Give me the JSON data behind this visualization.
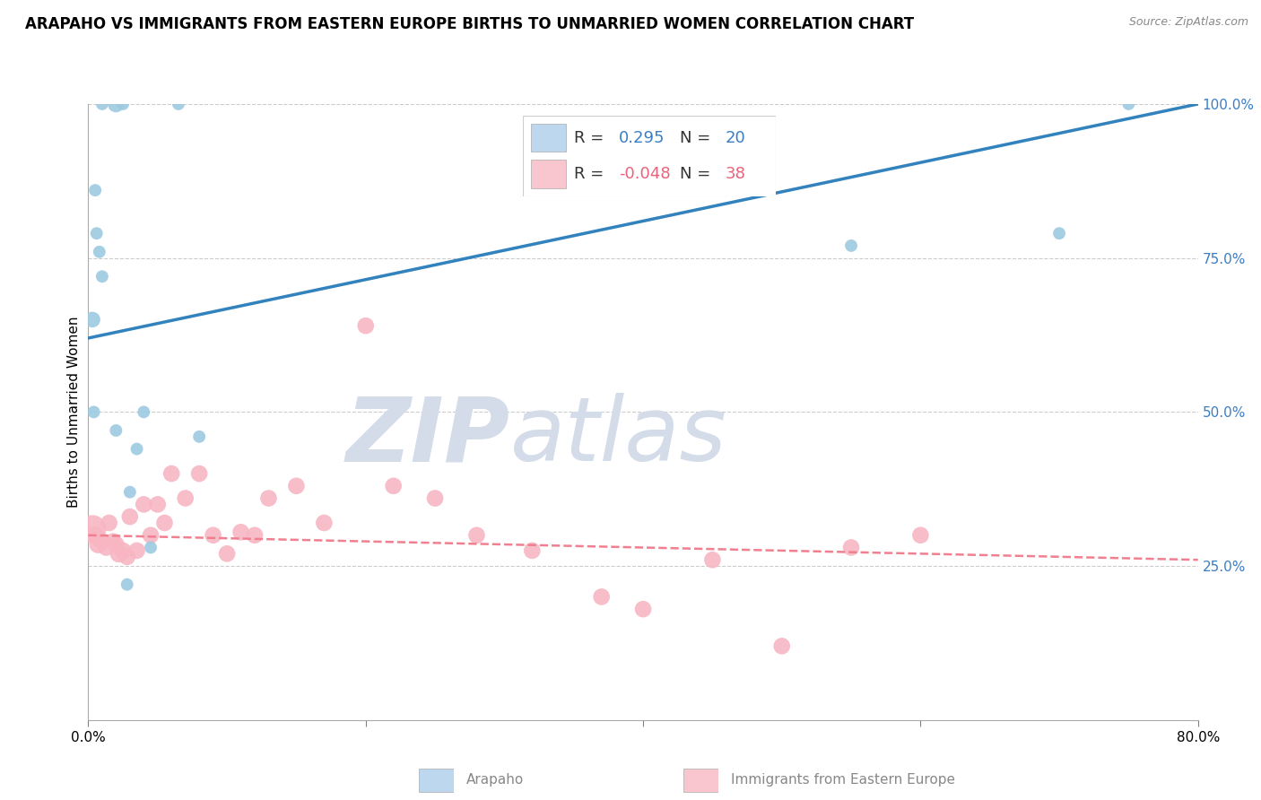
{
  "title": "ARAPAHO VS IMMIGRANTS FROM EASTERN EUROPE BIRTHS TO UNMARRIED WOMEN CORRELATION CHART",
  "source": "Source: ZipAtlas.com",
  "ylabel": "Births to Unmarried Women",
  "xlim": [
    0,
    80
  ],
  "ylim": [
    0,
    100
  ],
  "xlabel_values": [
    0.0,
    20.0,
    40.0,
    60.0,
    80.0
  ],
  "xlabel_labels": [
    "0.0%",
    "",
    "",
    "",
    "80.0%"
  ],
  "ylabel_ticks": [
    25.0,
    50.0,
    75.0,
    100.0
  ],
  "ylabel_labels": [
    "25.0%",
    "50.0%",
    "75.0%",
    "100.0%"
  ],
  "arapaho_R": 0.295,
  "arapaho_N": 20,
  "eastern_europe_R": -0.048,
  "eastern_europe_N": 38,
  "arapaho_color": "#9ECAE1",
  "eastern_europe_color": "#F7B6C2",
  "trend_blue_color": "#3182BD",
  "trend_pink_color": "#E8647A",
  "legend_box_color_blue": "#BDD7EE",
  "legend_box_color_pink": "#F9C6D0",
  "watermark_zip": "ZIP",
  "watermark_atlas": "atlas",
  "watermark_color": "#D3DCE8",
  "arapaho_x": [
    1.0,
    2.0,
    2.5,
    6.5,
    0.5,
    0.8,
    1.0,
    0.3,
    0.6,
    2.0,
    3.5,
    55.0,
    70.0,
    75.0,
    0.4,
    4.0,
    8.0,
    3.0,
    2.8,
    4.5
  ],
  "arapaho_y": [
    100.0,
    100.0,
    100.0,
    100.0,
    86.0,
    76.0,
    72.0,
    65.0,
    79.0,
    47.0,
    44.0,
    77.0,
    79.0,
    100.0,
    50.0,
    50.0,
    46.0,
    37.0,
    22.0,
    28.0
  ],
  "arapaho_sizes": [
    100,
    180,
    100,
    100,
    100,
    100,
    100,
    160,
    100,
    100,
    100,
    100,
    100,
    100,
    100,
    100,
    100,
    100,
    100,
    100
  ],
  "eastern_europe_x": [
    0.3,
    0.5,
    0.7,
    1.0,
    1.3,
    1.5,
    1.8,
    2.0,
    2.2,
    2.5,
    2.8,
    3.0,
    3.5,
    4.0,
    4.5,
    5.0,
    5.5,
    6.0,
    7.0,
    8.0,
    9.0,
    10.0,
    11.0,
    12.0,
    13.0,
    15.0,
    17.0,
    20.0,
    22.0,
    25.0,
    28.0,
    32.0,
    37.0,
    40.0,
    45.0,
    50.0,
    55.0,
    60.0
  ],
  "eastern_europe_y": [
    31.0,
    30.0,
    28.5,
    29.0,
    28.0,
    32.0,
    29.0,
    28.5,
    27.0,
    27.5,
    26.5,
    33.0,
    27.5,
    35.0,
    30.0,
    35.0,
    32.0,
    40.0,
    36.0,
    40.0,
    30.0,
    27.0,
    30.5,
    30.0,
    36.0,
    38.0,
    32.0,
    64.0,
    38.0,
    36.0,
    30.0,
    27.5,
    20.0,
    18.0,
    26.0,
    12.0,
    28.0,
    30.0
  ],
  "eastern_europe_sizes": [
    500,
    200,
    200,
    180,
    180,
    180,
    180,
    180,
    200,
    180,
    180,
    180,
    180,
    180,
    180,
    180,
    180,
    180,
    180,
    180,
    180,
    180,
    180,
    180,
    180,
    180,
    180,
    180,
    180,
    180,
    180,
    180,
    180,
    180,
    180,
    180,
    180,
    180
  ],
  "arapaho_trend": [
    0,
    62,
    80,
    100
  ],
  "eastern_europe_trend": [
    0,
    30,
    80,
    26
  ],
  "grid_color": "#CCCCCC",
  "legend_R_color": "#3A7EC6",
  "trend_pink_dashed_color": "#F08090"
}
